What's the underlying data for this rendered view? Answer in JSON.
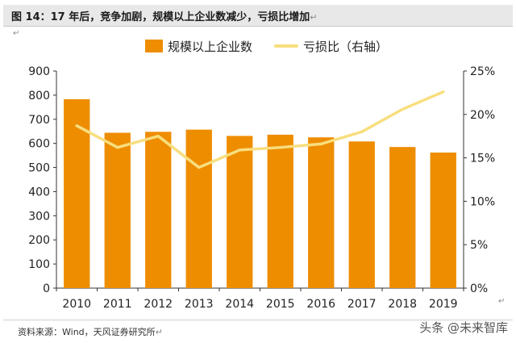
{
  "header": {
    "title": "图 14：17 年后，竞争加剧，规模以上企业数减少，亏损比增加"
  },
  "footer": {
    "source": "资料来源：Wind，天风证券研究所"
  },
  "watermark": "头条 @未来智库",
  "colors": {
    "bar": "#EE8D00",
    "line": "#F8DE7E"
  },
  "chart_data": {
    "type": "bar",
    "categories": [
      "2010",
      "2011",
      "2012",
      "2013",
      "2014",
      "2015",
      "2016",
      "2017",
      "2018",
      "2019"
    ],
    "series": [
      {
        "name": "规模以上企业数",
        "type": "bar",
        "axis": "left",
        "values": [
          783,
          644,
          648,
          657,
          631,
          636,
          625,
          608,
          585,
          562
        ]
      },
      {
        "name": "亏损比（右轴）",
        "type": "line",
        "axis": "right",
        "values": [
          18.7,
          16.2,
          17.5,
          13.9,
          15.9,
          16.2,
          16.6,
          18.0,
          20.6,
          22.6
        ]
      }
    ],
    "left_axis": {
      "min": 0,
      "max": 900,
      "ticks": [
        0,
        100,
        200,
        300,
        400,
        500,
        600,
        700,
        800,
        900
      ]
    },
    "right_axis": {
      "min": 0,
      "max": 25,
      "ticks": [
        "0%",
        "5%",
        "10%",
        "15%",
        "20%",
        "25%"
      ]
    },
    "legend_position": "top-center",
    "grid": false
  }
}
